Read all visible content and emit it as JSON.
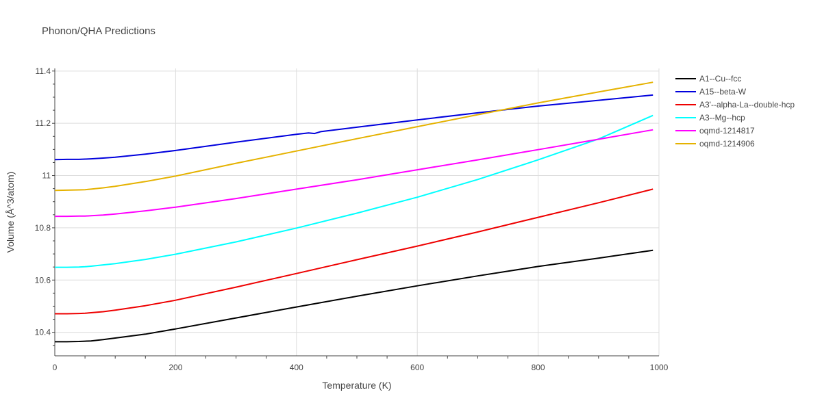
{
  "chart_data": {
    "type": "line",
    "title": "Phonon/QHA Predictions",
    "xlabel": "Temperature (K)",
    "ylabel": "Volume (Å^3/atom)",
    "xlim": [
      0,
      1000
    ],
    "ylim": [
      10.31,
      11.41
    ],
    "x_ticks": [
      0,
      200,
      400,
      600,
      800,
      1000
    ],
    "x_tick_labels": [
      "0",
      "200",
      "400",
      "600",
      "800",
      "1000"
    ],
    "y_ticks": [
      10.4,
      10.6,
      10.8,
      11.0,
      11.2,
      11.4
    ],
    "y_tick_labels": [
      "10.4",
      "10.6",
      "10.8",
      "11",
      "11.2",
      "11.4"
    ],
    "grid": true,
    "legend_position": "right",
    "series": [
      {
        "name": "A1--Cu--fcc",
        "color": "#000000",
        "x": [
          0,
          20,
          40,
          50,
          60,
          80,
          100,
          150,
          200,
          300,
          400,
          500,
          600,
          700,
          800,
          900,
          990
        ],
        "y": [
          10.364,
          10.364,
          10.365,
          10.366,
          10.367,
          10.372,
          10.378,
          10.393,
          10.413,
          10.455,
          10.497,
          10.538,
          10.578,
          10.616,
          10.652,
          10.684,
          10.714
        ]
      },
      {
        "name": "A15--beta-W",
        "color": "#0000dd",
        "x": [
          0,
          20,
          40,
          50,
          60,
          80,
          100,
          150,
          200,
          300,
          400,
          420,
          430,
          440,
          500,
          600,
          700,
          800,
          900,
          990
        ],
        "y": [
          11.061,
          11.062,
          11.062,
          11.063,
          11.064,
          11.067,
          11.07,
          11.082,
          11.096,
          11.128,
          11.158,
          11.163,
          11.161,
          11.168,
          11.185,
          11.213,
          11.24,
          11.266,
          11.288,
          11.308
        ]
      },
      {
        "name": "A3'--alpha-La--double-hcp",
        "color": "#ee0000",
        "x": [
          0,
          20,
          40,
          50,
          60,
          80,
          100,
          150,
          200,
          300,
          400,
          500,
          600,
          700,
          800,
          900,
          990
        ],
        "y": [
          10.471,
          10.471,
          10.472,
          10.473,
          10.475,
          10.479,
          10.485,
          10.502,
          10.523,
          10.573,
          10.625,
          10.678,
          10.73,
          10.784,
          10.84,
          10.896,
          10.948
        ]
      },
      {
        "name": "A3--Mg--hcp",
        "color": "#00ffff",
        "x": [
          0,
          20,
          40,
          50,
          60,
          80,
          100,
          150,
          200,
          300,
          400,
          500,
          600,
          700,
          800,
          900,
          990
        ],
        "y": [
          10.649,
          10.649,
          10.65,
          10.651,
          10.653,
          10.658,
          10.663,
          10.679,
          10.699,
          10.746,
          10.799,
          10.856,
          10.917,
          10.985,
          11.06,
          11.14,
          11.23
        ]
      },
      {
        "name": "oqmd-1214817",
        "color": "#ff00ff",
        "x": [
          0,
          20,
          40,
          50,
          60,
          80,
          100,
          150,
          200,
          300,
          400,
          500,
          600,
          700,
          800,
          900,
          990
        ],
        "y": [
          10.844,
          10.844,
          10.845,
          10.845,
          10.846,
          10.849,
          10.853,
          10.865,
          10.879,
          10.912,
          10.948,
          10.984,
          11.022,
          11.06,
          11.099,
          11.139,
          11.175
        ]
      },
      {
        "name": "oqmd-1214906",
        "color": "#e5b200",
        "x": [
          0,
          20,
          40,
          50,
          60,
          80,
          100,
          150,
          200,
          300,
          400,
          500,
          600,
          700,
          800,
          900,
          990
        ],
        "y": [
          10.943,
          10.944,
          10.945,
          10.946,
          10.948,
          10.953,
          10.959,
          10.977,
          10.998,
          11.047,
          11.094,
          11.141,
          11.187,
          11.233,
          11.278,
          11.32,
          11.357
        ]
      }
    ]
  }
}
